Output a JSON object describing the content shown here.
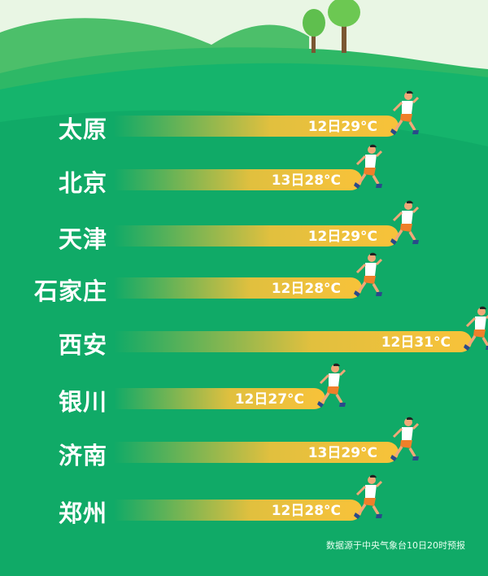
{
  "chart_data": {
    "type": "bar",
    "orientation": "horizontal",
    "categories": [
      "太原",
      "北京",
      "天津",
      "石家庄",
      "西安",
      "银川",
      "济南",
      "郑州"
    ],
    "values": [
      29,
      28,
      29,
      28,
      31,
      27,
      29,
      28
    ],
    "labels": [
      "12日29°C",
      "13日28°C",
      "12日29°C",
      "12日28°C",
      "12日31°C",
      "12日27°C",
      "13日29°C",
      "12日28°C"
    ],
    "unit": "°C",
    "bar_color": "#f8c23a",
    "background_color": "#0fae68"
  },
  "footer": "数据源于中央气象台10日20时预报"
}
